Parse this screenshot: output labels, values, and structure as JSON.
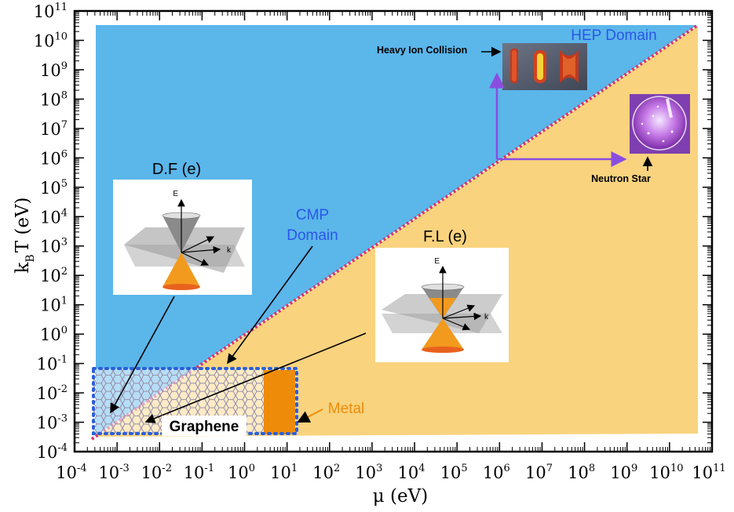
{
  "axes": {
    "x_label": "μ (eV)",
    "y_label_main": "k",
    "y_label_sub": "B",
    "y_label_rest": "T (eV)",
    "x_ticks": [
      {
        "base": "10",
        "exp": "-4"
      },
      {
        "base": "10",
        "exp": "-3"
      },
      {
        "base": "10",
        "exp": "-2"
      },
      {
        "base": "10",
        "exp": "-1"
      },
      {
        "base": "10",
        "exp": "0"
      },
      {
        "base": "10",
        "exp": "1"
      },
      {
        "base": "10",
        "exp": "2"
      },
      {
        "base": "10",
        "exp": "3"
      },
      {
        "base": "10",
        "exp": "4"
      },
      {
        "base": "10",
        "exp": "5"
      },
      {
        "base": "10",
        "exp": "6"
      },
      {
        "base": "10",
        "exp": "7"
      },
      {
        "base": "10",
        "exp": "8"
      },
      {
        "base": "10",
        "exp": "9"
      },
      {
        "base": "10",
        "exp": "10"
      },
      {
        "base": "10",
        "exp": "11"
      }
    ],
    "y_ticks": [
      {
        "base": "10",
        "exp": "-4"
      },
      {
        "base": "10",
        "exp": "-3"
      },
      {
        "base": "10",
        "exp": "-2"
      },
      {
        "base": "10",
        "exp": "-1"
      },
      {
        "base": "10",
        "exp": "0"
      },
      {
        "base": "10",
        "exp": "1"
      },
      {
        "base": "10",
        "exp": "2"
      },
      {
        "base": "10",
        "exp": "3"
      },
      {
        "base": "10",
        "exp": "4"
      },
      {
        "base": "10",
        "exp": "5"
      },
      {
        "base": "10",
        "exp": "6"
      },
      {
        "base": "10",
        "exp": "7"
      },
      {
        "base": "10",
        "exp": "8"
      },
      {
        "base": "10",
        "exp": "9"
      },
      {
        "base": "10",
        "exp": "10"
      },
      {
        "base": "10",
        "exp": "11"
      }
    ],
    "range_log10": [
      -4,
      11
    ],
    "scale": "log"
  },
  "regions": {
    "hep_color": "#5bb6ea",
    "fl_color": "#f9d37e",
    "boundary_color": "#d9346b",
    "metal_color": "#ee8c0a",
    "graphene_box_color": "#2b5fd9"
  },
  "labels": {
    "hep_domain": "HEP Domain",
    "cmp_domain_line1": "CMP",
    "cmp_domain_line2": "Domain",
    "df": "D.F (e)",
    "fl": "F.L (e)",
    "graphene": "Graphene",
    "metal": "Metal",
    "heavy_ion": "Heavy Ion Collision",
    "neutron_star": "Neutron Star"
  },
  "insets": {
    "cone_axis_E": "E",
    "cone_axis_k": "k"
  }
}
